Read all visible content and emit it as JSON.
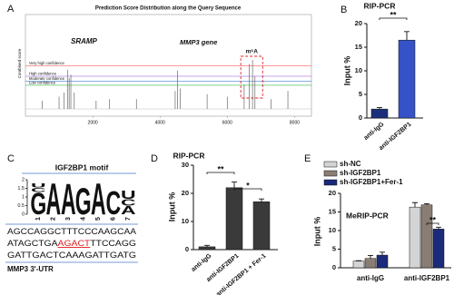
{
  "chart_data": [
    {
      "type": "stem",
      "panel_label": "A",
      "title": "Prediction Score Distribution along the Query Sequence",
      "y_label": "Combined score",
      "annotations": [
        "SRAMP",
        "MMP3 gene",
        "m⁶A"
      ],
      "x": [
        500,
        1000,
        1150,
        1250,
        1300,
        1350,
        1450,
        2100,
        2500,
        3300,
        4450,
        4520,
        4600,
        5400,
        6000,
        6500,
        6650,
        6750,
        6820,
        7300,
        7800
      ],
      "values": [
        0.1,
        0.15,
        0.2,
        0.48,
        0.38,
        0.42,
        0.2,
        0.1,
        0.12,
        0.12,
        0.22,
        0.47,
        0.25,
        0.18,
        0.15,
        0.3,
        0.55,
        0.6,
        0.4,
        0.12,
        0.22
      ],
      "color": "#7a7a7a",
      "xlim": [
        0,
        8500
      ],
      "xticks": [
        2000,
        4000,
        6000,
        8000
      ],
      "ylim": [
        0,
        1
      ],
      "thresholds": [
        {
          "name": "Very high confidence",
          "color": "#ff5a5a",
          "value": 0.53
        },
        {
          "name": "High confidence",
          "color": "#8a4fd8",
          "value": 0.4
        },
        {
          "name": "Moderate confidence",
          "color": "#3a7bd5",
          "value": 0.34
        },
        {
          "name": "Low confidence",
          "color": "#3cb84a",
          "value": 0.29
        }
      ]
    },
    {
      "type": "bar",
      "panel_label": "B",
      "title": "RIP-PCR",
      "y_label": "Input %",
      "categories": [
        "anti-IgG",
        "anti-IGF2BP1"
      ],
      "values": [
        1.9,
        16.5
      ],
      "errors": [
        0.3,
        1.8
      ],
      "colors": [
        "#1c2f7a",
        "#3553c6"
      ],
      "ylim": [
        0,
        20
      ],
      "yticks": [
        0,
        5,
        10,
        15,
        20
      ],
      "significance": [
        "**"
      ]
    },
    {
      "type": "bar",
      "panel_label": "D",
      "title": "RIP-PCR",
      "y_label": "Input %",
      "categories": [
        "anti-IgG",
        "anti-IGF2BP1",
        "anti-IGF2BP1 + Fer-1"
      ],
      "values": [
        1,
        22,
        17
      ],
      "errors": [
        0.5,
        2,
        1
      ],
      "colors": [
        "#3a3a3a",
        "#3a3a3a",
        "#3a3a3a"
      ],
      "ylim": [
        0,
        30
      ],
      "yticks": [
        0,
        10,
        20,
        30
      ],
      "significance": [
        "**",
        "*"
      ]
    },
    {
      "type": "grouped_bar",
      "panel_label": "E",
      "title": "MeRIP-PCR",
      "y_label": "Input %",
      "categories": [
        "anti-IgG",
        "anti-IGF2BP1"
      ],
      "series": [
        {
          "name": "sh-NC",
          "color": "#d4d4d4",
          "values": [
            1.8,
            16.3
          ],
          "errors": [
            0.1,
            1.2
          ]
        },
        {
          "name": "sh-IGF2BP1",
          "color": "#8a7e74",
          "values": [
            2.5,
            16.9
          ],
          "errors": [
            0.8,
            0.3
          ]
        },
        {
          "name": "sh-IGF2BP1+Fer-1",
          "color": "#1b2a7a",
          "values": [
            3.4,
            10.4
          ],
          "errors": [
            0.8,
            0.5
          ]
        }
      ],
      "ylim": [
        0,
        20
      ],
      "yticks": [
        0,
        5,
        10,
        15,
        20
      ],
      "significance": [
        "**"
      ]
    }
  ],
  "motif": {
    "panel_label": "C",
    "title": "IGF2BP1 motif",
    "yticks": [
      0,
      0.5,
      1,
      1.5,
      2
    ],
    "positions": [
      "1",
      "2",
      "3",
      "4",
      "5",
      "6",
      "7"
    ],
    "letter_colors": {
      "A": "#3aa335",
      "C": "#2a5cc4",
      "G": "#f2a900",
      "U": "#e8221e"
    },
    "columns": [
      [
        {
          "letter": "U",
          "height": 0.25
        },
        {
          "letter": "C",
          "height": 0.25
        },
        {
          "letter": "G",
          "height": 1.3
        }
      ],
      [
        {
          "letter": "A",
          "height": 1.9
        }
      ],
      [
        {
          "letter": "A",
          "height": 1.85
        }
      ],
      [
        {
          "letter": "G",
          "height": 1.6
        }
      ],
      [
        {
          "letter": "A",
          "height": 1.9
        }
      ],
      [
        {
          "letter": "C",
          "height": 1.4
        }
      ],
      [
        {
          "letter": "U",
          "height": 0.5
        },
        {
          "letter": "C",
          "height": 0.4
        },
        {
          "letter": "A",
          "height": 0.5
        }
      ]
    ],
    "sequence": [
      {
        "parts": [
          "AGCCAGGCTTTCCCAAGCAA"
        ]
      },
      {
        "parts": [
          "ATAGCTGA",
          "AGACT",
          "TTCCAGG"
        ]
      },
      {
        "parts": [
          "GATTGACTCAAAGATTGATG"
        ]
      }
    ],
    "caption": "MMP3 3'-UTR"
  }
}
